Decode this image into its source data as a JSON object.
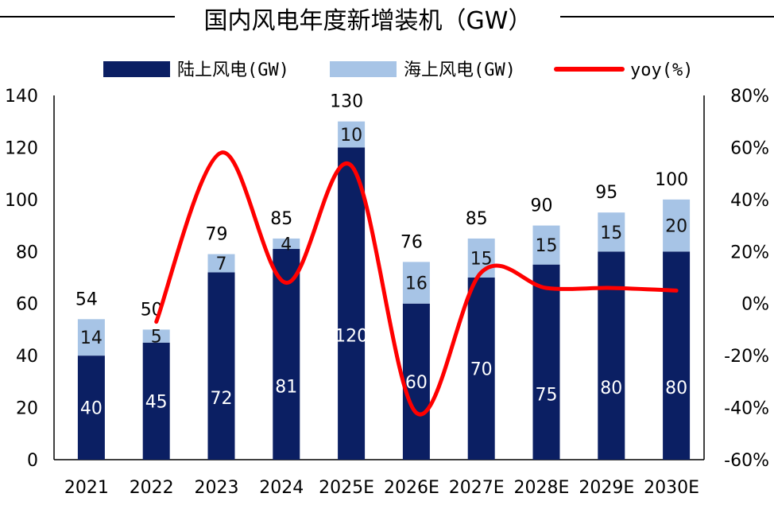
{
  "chart_data": {
    "type": "bar",
    "stacked": true,
    "title": "国内风电年度新增装机（GW）",
    "categories": [
      "2021",
      "2022",
      "2023",
      "2024",
      "2025E",
      "2026E",
      "2027E",
      "2028E",
      "2029E",
      "2030E"
    ],
    "series": [
      {
        "name": "陆上风电(GW)",
        "type": "bar",
        "axis": "left",
        "color": "#0b1f63",
        "values": [
          40,
          45,
          72,
          81,
          120,
          60,
          70,
          75,
          80,
          80
        ]
      },
      {
        "name": "海上风电(GW)",
        "type": "bar",
        "axis": "left",
        "color": "#a7c4e6",
        "values": [
          14,
          5,
          7,
          4,
          10,
          16,
          15,
          15,
          15,
          20
        ]
      },
      {
        "name": "yoy(%)",
        "type": "line",
        "axis": "right",
        "color": "#ff0000",
        "values": [
          null,
          -7,
          58,
          8,
          53,
          -42,
          12,
          6,
          6,
          5
        ]
      }
    ],
    "totals": [
      54,
      50,
      79,
      85,
      130,
      76,
      85,
      90,
      95,
      100
    ],
    "y_left": {
      "min": 0,
      "max": 140,
      "ticks": [
        0,
        20,
        40,
        60,
        80,
        100,
        120,
        140
      ]
    },
    "y_right": {
      "min": -60,
      "max": 80,
      "ticks": [
        "-60%",
        "-40%",
        "-20%",
        "0%",
        "20%",
        "40%",
        "60%",
        "80%"
      ],
      "tick_values": [
        -60,
        -40,
        -20,
        0,
        20,
        40,
        60,
        80
      ]
    },
    "legend_position": "top",
    "grid": false
  }
}
